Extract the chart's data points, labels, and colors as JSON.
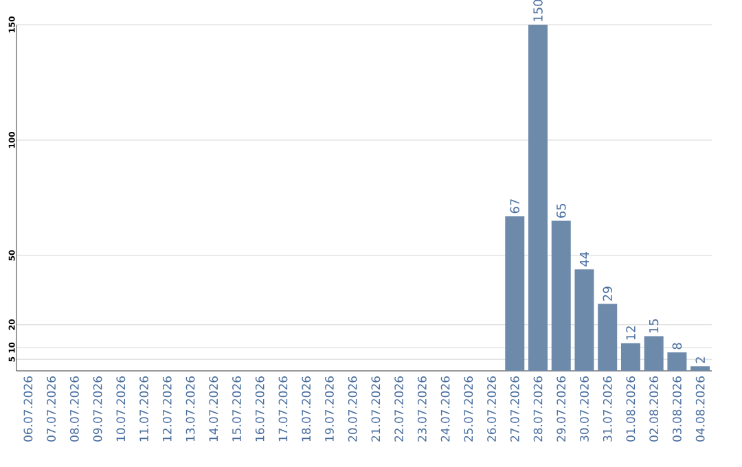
{
  "chart_data": {
    "type": "bar",
    "categories": [
      "06.07.2026",
      "07.07.2026",
      "08.07.2026",
      "09.07.2026",
      "10.07.2026",
      "11.07.2026",
      "12.07.2026",
      "13.07.2026",
      "14.07.2026",
      "15.07.2026",
      "16.07.2026",
      "17.07.2026",
      "18.07.2026",
      "19.07.2026",
      "20.07.2026",
      "21.07.2026",
      "22.07.2026",
      "23.07.2026",
      "24.07.2026",
      "25.07.2026",
      "26.07.2026",
      "27.07.2026",
      "28.07.2026",
      "29.07.2026",
      "30.07.2026",
      "31.07.2026",
      "01.08.2026",
      "02.08.2026",
      "03.08.2026",
      "04.08.2026"
    ],
    "values": [
      0,
      0,
      0,
      0,
      0,
      0,
      0,
      0,
      0,
      0,
      0,
      0,
      0,
      0,
      0,
      0,
      0,
      0,
      0,
      0,
      0,
      67,
      150,
      65,
      44,
      29,
      12,
      15,
      8,
      2
    ],
    "value_labels": [
      null,
      null,
      null,
      null,
      null,
      null,
      null,
      null,
      null,
      null,
      null,
      null,
      null,
      null,
      null,
      null,
      null,
      null,
      null,
      null,
      null,
      "67",
      "150",
      "65",
      "44",
      "29",
      "12",
      "15",
      "8",
      "2"
    ],
    "color": "#6d8aaa",
    "ylim": [
      0,
      150
    ],
    "yticks": [
      5,
      10,
      20,
      50,
      100,
      150
    ],
    "grid": "y"
  }
}
